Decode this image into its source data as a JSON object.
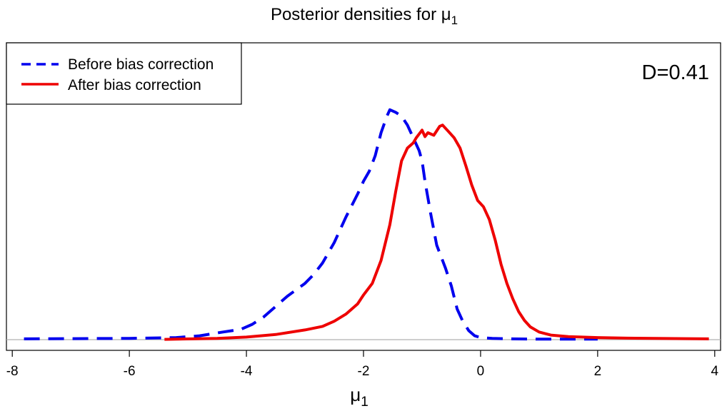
{
  "chart_data": {
    "type": "line",
    "title_main": "Posterior densities for ",
    "title_symbol": "μ",
    "title_sub": "1",
    "xlabel_symbol": "μ",
    "xlabel_sub": "1",
    "ylabel": "",
    "xlim": [
      -8.1,
      4.1
    ],
    "ylim": [
      0,
      1
    ],
    "xticks": [
      -8,
      -6,
      -4,
      -2,
      0,
      2,
      4
    ],
    "xtick_labels": [
      "-8",
      "-6",
      "-4",
      "-2",
      "0",
      "2",
      "4"
    ],
    "grid": false,
    "baseline": true,
    "annotation": "D=0.41",
    "legend": {
      "position": "top-left",
      "entries": [
        {
          "label": "Before bias correction",
          "color": "#0000ee",
          "style": "dashed"
        },
        {
          "label": "After bias correction",
          "color": "#ee0000",
          "style": "solid"
        }
      ]
    },
    "series": [
      {
        "name": "Before bias correction",
        "color": "#0000ee",
        "style": "dashed",
        "x": [
          -7.8,
          -7.0,
          -6.0,
          -5.2,
          -4.8,
          -4.4,
          -4.1,
          -3.9,
          -3.7,
          -3.5,
          -3.3,
          -3.0,
          -2.85,
          -2.7,
          -2.5,
          -2.4,
          -2.3,
          -2.1,
          -2.0,
          -1.9,
          -1.8,
          -1.7,
          -1.6,
          -1.55,
          -1.45,
          -1.35,
          -1.25,
          -1.15,
          -1.05,
          -1.0,
          -0.95,
          -0.85,
          -0.75,
          -0.6,
          -0.5,
          -0.4,
          -0.3,
          -0.2,
          -0.1,
          0.0,
          0.2,
          0.5,
          1.0,
          2.0
        ],
        "y": [
          0.003,
          0.004,
          0.005,
          0.008,
          0.015,
          0.03,
          0.04,
          0.06,
          0.09,
          0.13,
          0.17,
          0.22,
          0.255,
          0.3,
          0.38,
          0.43,
          0.48,
          0.57,
          0.62,
          0.66,
          0.72,
          0.81,
          0.875,
          0.9,
          0.89,
          0.875,
          0.84,
          0.79,
          0.74,
          0.7,
          0.62,
          0.49,
          0.37,
          0.28,
          0.21,
          0.12,
          0.07,
          0.035,
          0.015,
          0.008,
          0.005,
          0.003,
          0.002,
          0.002
        ]
      },
      {
        "name": "After bias correction",
        "color": "#ee0000",
        "style": "solid",
        "x": [
          -5.4,
          -4.5,
          -4.0,
          -3.5,
          -3.0,
          -2.7,
          -2.5,
          -2.3,
          -2.1,
          -2.0,
          -1.85,
          -1.7,
          -1.55,
          -1.45,
          -1.35,
          -1.25,
          -1.15,
          -1.1,
          -1.0,
          -0.95,
          -0.9,
          -0.8,
          -0.7,
          -0.65,
          -0.55,
          -0.45,
          -0.35,
          -0.25,
          -0.15,
          -0.05,
          0.05,
          0.15,
          0.25,
          0.35,
          0.45,
          0.55,
          0.65,
          0.75,
          0.85,
          1.0,
          1.2,
          1.5,
          2.0,
          2.5,
          3.0,
          3.5,
          3.9
        ],
        "y": [
          0.001,
          0.005,
          0.01,
          0.02,
          0.038,
          0.052,
          0.072,
          0.1,
          0.14,
          0.175,
          0.22,
          0.31,
          0.45,
          0.58,
          0.7,
          0.75,
          0.77,
          0.79,
          0.82,
          0.795,
          0.81,
          0.8,
          0.835,
          0.84,
          0.815,
          0.79,
          0.75,
          0.68,
          0.605,
          0.545,
          0.52,
          0.47,
          0.39,
          0.295,
          0.22,
          0.16,
          0.11,
          0.075,
          0.05,
          0.03,
          0.018,
          0.012,
          0.008,
          0.006,
          0.005,
          0.004,
          0.003
        ]
      }
    ]
  }
}
